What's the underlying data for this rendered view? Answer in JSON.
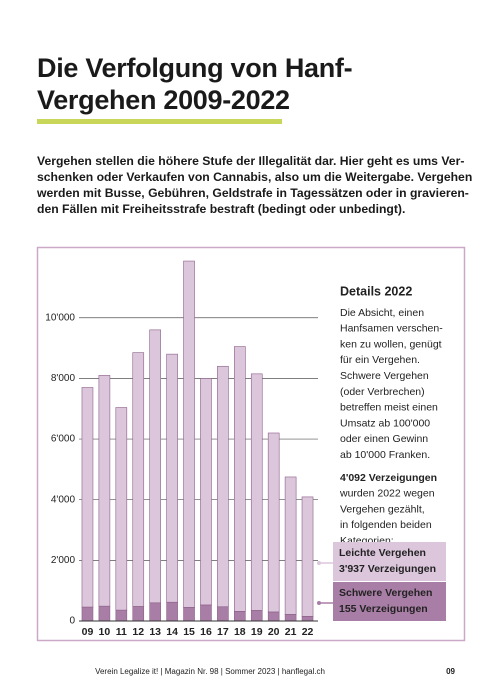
{
  "title_lines": [
    "Die Verfolgung von Hanf-",
    "Vergehen 2009-2022"
  ],
  "lead_lines": [
    "Vergehen stellen die höhere Stufe der Illegalität dar. Hier geht es ums Ver-",
    "schenken oder Verkaufen von Cannabis, also um die Weitergabe. Vergehen",
    "werden mit Busse, Gebühren, Geldstrafe in Tagessätzen oder in gravieren-",
    "den Fällen mit Freiheitsstrafe bestraft (bedingt oder unbedingt)."
  ],
  "sidebar": {
    "heading": "Details 2022",
    "paragraph_lines": [
      "Die Absicht, einen",
      "Hanfsamen verschen-",
      "ken zu wollen, genügt",
      "für ein Vergehen.",
      "Schwere Vergehen",
      "(oder Verbrechen)",
      "betreffen meist einen",
      "Umsatz ab 100'000",
      "oder einen Gewinn",
      "ab 10'000 Franken."
    ],
    "summary_bold": "4'092 Verzeigungen",
    "summary_lines": [
      "wurden 2022 wegen",
      "Vergehen gezählt,",
      "in folgenden beiden",
      "Kategorien:"
    ]
  },
  "footer": {
    "text": "Verein Legalize it! | Magazin Nr. 98 | Sommer 2023 | hanflegal.ch",
    "page": "09"
  },
  "chart_data": {
    "type": "stacked_bar",
    "categories": [
      "09",
      "10",
      "11",
      "12",
      "13",
      "14",
      "15",
      "16",
      "17",
      "18",
      "19",
      "20",
      "21",
      "22"
    ],
    "series": [
      {
        "name": "Schwere Vergehen",
        "note": "155 Verzeigungen",
        "color": "#a97ea6",
        "values": [
          460,
          490,
          360,
          480,
          600,
          620,
          450,
          530,
          470,
          320,
          350,
          300,
          220,
          155
        ]
      },
      {
        "name": "Leichte Vergehen",
        "note": "3'937 Verzeigungen",
        "color": "#dcc6dc",
        "values": [
          7240,
          7610,
          6680,
          8370,
          9000,
          8180,
          11420,
          7470,
          7930,
          8730,
          7800,
          5900,
          4530,
          3937
        ]
      }
    ],
    "ylim": [
      0,
      12300
    ],
    "yticks": [
      0,
      {
        "value": 2000,
        "label": "2'000"
      },
      {
        "value": 4000,
        "label": "4'000"
      },
      {
        "value": 6000,
        "label": "6'000"
      },
      {
        "value": 8000,
        "label": "8'000"
      },
      {
        "value": 10000,
        "label": "10'000"
      }
    ],
    "grid": true
  }
}
